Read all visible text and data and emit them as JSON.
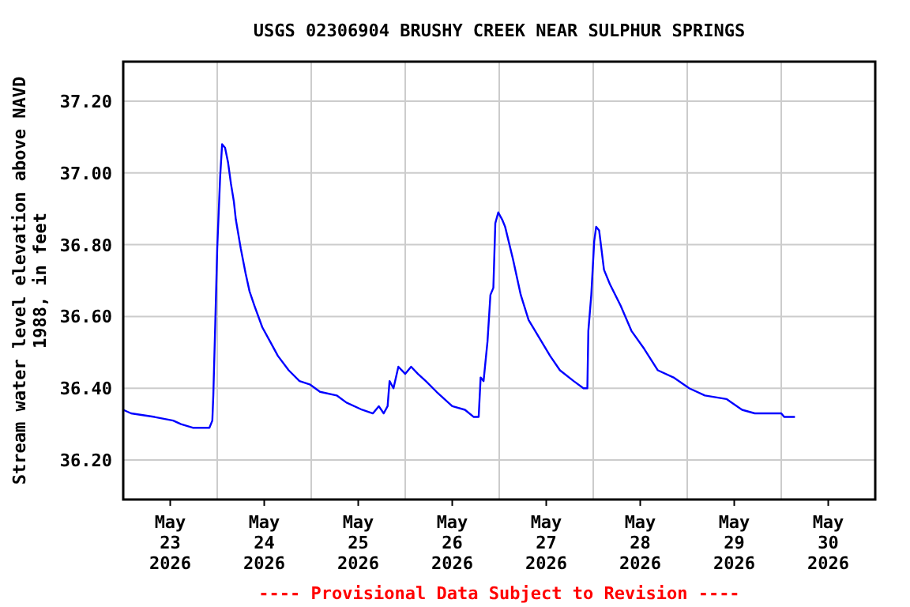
{
  "chart_data": {
    "type": "line",
    "title": "USGS 02306904 BRUSHY CREEK NEAR SULPHUR SPRINGS",
    "ylabel": "Stream water level elevation above NAVD\n1988, in feet",
    "annotations": [
      "---- Provisional Data Subject to Revision ----"
    ],
    "x": [
      "2026-05-23T00:00",
      "2026-05-23T02:00",
      "2026-05-23T08:00",
      "2026-05-23T12:45",
      "2026-05-23T14:45",
      "2026-05-23T17:45",
      "2026-05-23T22:00",
      "2026-05-23T22:45",
      "2026-05-23T23:00",
      "2026-05-23T23:30",
      "2026-05-24T00:00",
      "2026-05-24T00:45",
      "2026-05-24T01:15",
      "2026-05-24T02:00",
      "2026-05-24T02:45",
      "2026-05-24T03:30",
      "2026-05-24T04:15",
      "2026-05-24T04:45",
      "2026-05-24T06:00",
      "2026-05-24T07:15",
      "2026-05-24T08:15",
      "2026-05-24T09:30",
      "2026-05-24T11:30",
      "2026-05-24T13:30",
      "2026-05-24T15:30",
      "2026-05-24T18:15",
      "2026-05-24T21:00",
      "2026-05-24T23:45",
      "2026-05-25T02:15",
      "2026-05-25T06:30",
      "2026-05-25T09:00",
      "2026-05-25T13:00",
      "2026-05-25T15:45",
      "2026-05-25T17:15",
      "2026-05-25T18:30",
      "2026-05-25T19:30",
      "2026-05-25T20:00",
      "2026-05-25T21:00",
      "2026-05-25T22:15",
      "2026-05-26T00:00",
      "2026-05-26T01:30",
      "2026-05-26T03:15",
      "2026-05-26T05:15",
      "2026-05-26T08:00",
      "2026-05-26T12:00",
      "2026-05-26T15:15",
      "2026-05-26T17:30",
      "2026-05-26T18:45",
      "2026-05-26T19:15",
      "2026-05-26T20:00",
      "2026-05-26T21:00",
      "2026-05-26T21:45",
      "2026-05-26T22:30",
      "2026-05-26T23:00",
      "2026-05-26T23:45",
      "2026-05-27T00:45",
      "2026-05-27T01:30",
      "2026-05-27T03:30",
      "2026-05-27T05:30",
      "2026-05-27T07:30",
      "2026-05-27T10:15",
      "2026-05-27T13:00",
      "2026-05-27T15:30",
      "2026-05-27T19:00",
      "2026-05-27T21:30",
      "2026-05-27T22:30",
      "2026-05-27T22:45",
      "2026-05-27T23:30",
      "2026-05-28T00:15",
      "2026-05-28T00:45",
      "2026-05-28T01:30",
      "2026-05-28T02:45",
      "2026-05-28T04:15",
      "2026-05-28T07:00",
      "2026-05-28T09:45",
      "2026-05-28T13:00",
      "2026-05-28T16:30",
      "2026-05-28T20:30",
      "2026-05-29T00:30",
      "2026-05-29T04:30",
      "2026-05-29T10:00",
      "2026-05-29T14:00",
      "2026-05-29T17:15",
      "2026-05-30T00:00",
      "2026-05-30T00:45",
      "2026-05-30T03:30"
    ],
    "series": [
      {
        "color": "#0000ff",
        "values": [
          36.34,
          36.33,
          36.32,
          36.31,
          36.3,
          36.29,
          36.29,
          36.31,
          36.38,
          36.58,
          36.79,
          36.99,
          37.08,
          37.07,
          37.03,
          36.97,
          36.92,
          36.87,
          36.79,
          36.72,
          36.67,
          36.63,
          36.57,
          36.53,
          36.49,
          36.45,
          36.42,
          36.41,
          36.39,
          36.38,
          36.36,
          36.34,
          36.33,
          36.35,
          36.33,
          36.35,
          36.42,
          36.4,
          36.46,
          36.44,
          36.46,
          36.44,
          36.42,
          36.39,
          36.35,
          36.34,
          36.32,
          36.32,
          36.43,
          36.42,
          36.53,
          36.66,
          36.68,
          36.86,
          36.89,
          36.87,
          36.85,
          36.76,
          36.66,
          36.59,
          36.54,
          36.49,
          36.45,
          36.42,
          36.4,
          36.4,
          36.56,
          36.66,
          36.81,
          36.85,
          36.84,
          36.73,
          36.69,
          36.63,
          36.56,
          36.51,
          36.45,
          36.43,
          36.4,
          36.38,
          36.37,
          36.34,
          36.33,
          36.33,
          36.32,
          36.32
        ]
      }
    ],
    "xlim": [
      "2026-05-23T00:00",
      "2026-05-31T00:00"
    ],
    "xticks": [
      {
        "value": "2026-05-23T12:00",
        "label": "May\n23\n2026"
      },
      {
        "value": "2026-05-24T12:00",
        "label": "May\n24\n2026"
      },
      {
        "value": "2026-05-25T12:00",
        "label": "May\n25\n2026"
      },
      {
        "value": "2026-05-26T12:00",
        "label": "May\n26\n2026"
      },
      {
        "value": "2026-05-27T12:00",
        "label": "May\n27\n2026"
      },
      {
        "value": "2026-05-28T12:00",
        "label": "May\n28\n2026"
      },
      {
        "value": "2026-05-29T12:00",
        "label": "May\n29\n2026"
      },
      {
        "value": "2026-05-30T12:00",
        "label": "May\n30\n2026"
      },
      {
        "value": "2026-05-24T00:00",
        "label": null
      },
      {
        "value": "2026-05-25T00:00",
        "label": null
      },
      {
        "value": "2026-05-26T00:00",
        "label": null
      },
      {
        "value": "2026-05-27T00:00",
        "label": null
      },
      {
        "value": "2026-05-28T00:00",
        "label": null
      },
      {
        "value": "2026-05-29T00:00",
        "label": null
      },
      {
        "value": "2026-05-30T00:00",
        "label": null
      }
    ],
    "ylim": [
      36.09,
      37.31
    ],
    "yticks": [
      {
        "value": 36.2,
        "label": "36.20"
      },
      {
        "value": 36.4,
        "label": "36.40"
      },
      {
        "value": 36.6,
        "label": "36.60"
      },
      {
        "value": 36.8,
        "label": "36.80"
      },
      {
        "value": 37.0,
        "label": "37.00"
      },
      {
        "value": 37.2,
        "label": "37.20"
      }
    ],
    "grid": true,
    "marker": "none",
    "line_style": "solid"
  }
}
